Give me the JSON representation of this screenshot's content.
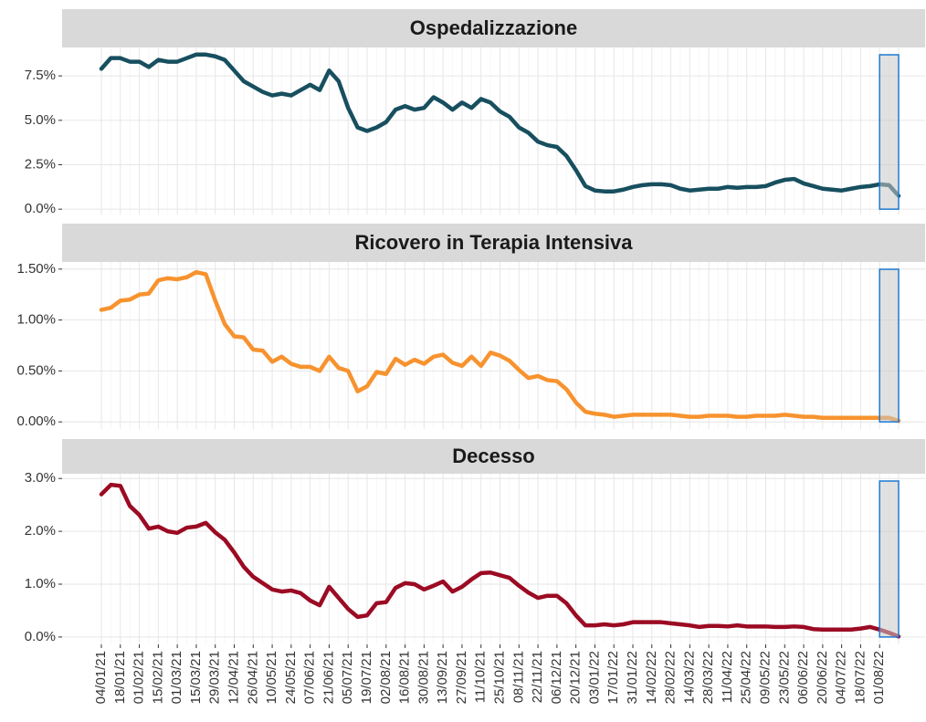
{
  "chart_data": [
    {
      "type": "line",
      "title": "Ospedalizzazione",
      "color": "#174f5f",
      "grid": true,
      "ylim": [
        -0.3,
        9.1
      ],
      "yticks": [
        {
          "value": 0,
          "label": "0.0%"
        },
        {
          "value": 2.5,
          "label": "2.5%"
        },
        {
          "value": 5,
          "label": "5.0%"
        },
        {
          "value": 7.5,
          "label": "7.5%"
        }
      ],
      "values": [
        7.9,
        8.5,
        8.5,
        8.3,
        8.3,
        8.0,
        8.4,
        8.3,
        8.3,
        8.5,
        8.7,
        8.7,
        8.6,
        8.4,
        7.8,
        7.2,
        6.9,
        6.6,
        6.4,
        6.5,
        6.4,
        6.7,
        7.0,
        6.7,
        7.8,
        7.2,
        5.7,
        4.6,
        4.4,
        4.6,
        4.9,
        5.6,
        5.8,
        5.6,
        5.7,
        6.3,
        6.0,
        5.6,
        6.0,
        5.7,
        6.2,
        6.0,
        5.5,
        5.2,
        4.6,
        4.3,
        3.8,
        3.6,
        3.5,
        3.0,
        2.2,
        1.3,
        1.05,
        1.0,
        1.0,
        1.1,
        1.25,
        1.35,
        1.4,
        1.4,
        1.35,
        1.15,
        1.05,
        1.1,
        1.15,
        1.15,
        1.25,
        1.2,
        1.25,
        1.25,
        1.3,
        1.5,
        1.65,
        1.7,
        1.45,
        1.3,
        1.15,
        1.1,
        1.05,
        1.15,
        1.25,
        1.3,
        1.4,
        1.35,
        0.75
      ]
    },
    {
      "type": "line",
      "title": "Ricovero in Terapia Intensiva",
      "color": "#f7932f",
      "grid": true,
      "ylim": [
        -0.07,
        1.57
      ],
      "yticks": [
        {
          "value": 0,
          "label": "0.00%"
        },
        {
          "value": 0.5,
          "label": "0.50%"
        },
        {
          "value": 1,
          "label": "1.00%"
        },
        {
          "value": 1.5,
          "label": "1.50%"
        }
      ],
      "values": [
        1.1,
        1.12,
        1.19,
        1.2,
        1.25,
        1.26,
        1.39,
        1.41,
        1.4,
        1.42,
        1.47,
        1.45,
        1.19,
        0.96,
        0.84,
        0.83,
        0.71,
        0.7,
        0.59,
        0.64,
        0.57,
        0.54,
        0.54,
        0.5,
        0.64,
        0.53,
        0.5,
        0.3,
        0.35,
        0.49,
        0.47,
        0.62,
        0.56,
        0.61,
        0.57,
        0.64,
        0.66,
        0.58,
        0.55,
        0.64,
        0.55,
        0.68,
        0.65,
        0.6,
        0.51,
        0.43,
        0.45,
        0.41,
        0.4,
        0.32,
        0.19,
        0.1,
        0.08,
        0.07,
        0.05,
        0.06,
        0.07,
        0.07,
        0.07,
        0.07,
        0.07,
        0.06,
        0.05,
        0.05,
        0.06,
        0.06,
        0.06,
        0.05,
        0.05,
        0.06,
        0.06,
        0.06,
        0.07,
        0.06,
        0.05,
        0.05,
        0.04,
        0.04,
        0.04,
        0.04,
        0.04,
        0.04,
        0.04,
        0.04,
        0.01
      ]
    },
    {
      "type": "line",
      "title": "Decesso",
      "color": "#9b0b23",
      "grid": true,
      "ylim": [
        -0.14,
        3.09
      ],
      "yticks": [
        {
          "value": 0,
          "label": "0.0%"
        },
        {
          "value": 1,
          "label": "1.0%"
        },
        {
          "value": 2,
          "label": "2.0%"
        },
        {
          "value": 3,
          "label": "3.0%"
        }
      ],
      "categories": [
        "04/01/21",
        null,
        "18/01/21",
        null,
        "01/02/21",
        null,
        "15/02/21",
        null,
        "01/03/21",
        null,
        "15/03/21",
        null,
        "29/03/21",
        null,
        "12/04/21",
        null,
        "26/04/21",
        null,
        "10/05/21",
        null,
        "24/05/21",
        null,
        "07/06/21",
        null,
        "21/06/21",
        null,
        "05/07/21",
        null,
        "19/07/21",
        null,
        "02/08/21",
        null,
        "16/08/21",
        null,
        "30/08/21",
        null,
        "13/09/21",
        null,
        "27/09/21",
        null,
        "11/10/21",
        null,
        "25/10/21",
        null,
        "08/11/21",
        null,
        "22/11/21",
        null,
        "06/12/21",
        null,
        "20/12/21",
        null,
        "03/01/22",
        null,
        "17/01/22",
        null,
        "31/01/22",
        null,
        "14/02/22",
        null,
        "28/02/22",
        null,
        "14/03/22",
        null,
        "28/03/22",
        null,
        "11/04/22",
        null,
        "25/04/22",
        null,
        "09/05/22",
        null,
        "23/05/22",
        null,
        "06/06/22",
        null,
        "20/06/22",
        null,
        "04/07/22",
        null,
        "18/07/22",
        null,
        "01/08/22",
        null,
        null
      ],
      "values": [
        2.7,
        2.88,
        2.86,
        2.48,
        2.31,
        2.05,
        2.09,
        2.0,
        1.97,
        2.07,
        2.09,
        2.16,
        1.98,
        1.84,
        1.6,
        1.33,
        1.14,
        1.02,
        0.9,
        0.86,
        0.88,
        0.83,
        0.69,
        0.6,
        0.95,
        0.74,
        0.53,
        0.38,
        0.41,
        0.64,
        0.66,
        0.93,
        1.02,
        1.0,
        0.9,
        0.97,
        1.05,
        0.86,
        0.95,
        1.09,
        1.21,
        1.22,
        1.17,
        1.12,
        0.97,
        0.84,
        0.74,
        0.78,
        0.78,
        0.64,
        0.41,
        0.22,
        0.22,
        0.24,
        0.22,
        0.24,
        0.28,
        0.28,
        0.28,
        0.28,
        0.26,
        0.24,
        0.22,
        0.19,
        0.21,
        0.21,
        0.2,
        0.22,
        0.2,
        0.2,
        0.2,
        0.19,
        0.19,
        0.2,
        0.19,
        0.15,
        0.14,
        0.14,
        0.14,
        0.14,
        0.16,
        0.19,
        0.14,
        0.08,
        0.01
      ]
    }
  ]
}
